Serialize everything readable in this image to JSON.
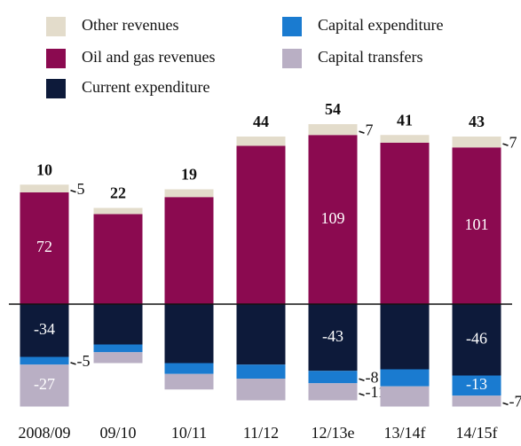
{
  "chart_data": {
    "type": "bar",
    "stacked": true,
    "categories": [
      "2008/09",
      "09/10",
      "10/11",
      "11/12",
      "12/13e",
      "13/14f",
      "14/15f"
    ],
    "series": [
      {
        "name": "Oil and gas revenues",
        "color": "#8b0a50",
        "values": [
          72,
          58,
          69,
          102,
          109,
          104,
          101
        ],
        "value_labels": [
          "72",
          null,
          null,
          null,
          "109",
          null,
          "101"
        ]
      },
      {
        "name": "Other revenues",
        "color": "#e3dccb",
        "values": [
          5,
          4,
          5,
          6,
          7,
          5,
          7
        ],
        "value_labels": [
          "5",
          null,
          null,
          null,
          "7",
          null,
          "7"
        ]
      },
      {
        "name": "Current expenditure",
        "color": "#0d1a3a",
        "values": [
          -34,
          -26,
          -38,
          -39,
          -43,
          -42,
          -46
        ],
        "value_labels": [
          "-34",
          null,
          null,
          null,
          "-43",
          null,
          "-46"
        ]
      },
      {
        "name": "Capital expenditure",
        "color": "#1a7bd0",
        "values": [
          -5,
          -5,
          -7,
          -9,
          -8,
          -11,
          -13
        ],
        "value_labels": [
          "-5",
          null,
          null,
          null,
          "-8",
          null,
          "-13"
        ]
      },
      {
        "name": "Capital transfers",
        "color": "#b9afc4",
        "values": [
          -27,
          -7,
          -10,
          -14,
          -11,
          -13,
          -7
        ],
        "value_labels": [
          "-27",
          null,
          null,
          null,
          "-11",
          null,
          "-7"
        ]
      }
    ],
    "totals": [
      10,
      22,
      19,
      44,
      54,
      41,
      43
    ],
    "ylim": [
      -90,
      197
    ]
  }
}
